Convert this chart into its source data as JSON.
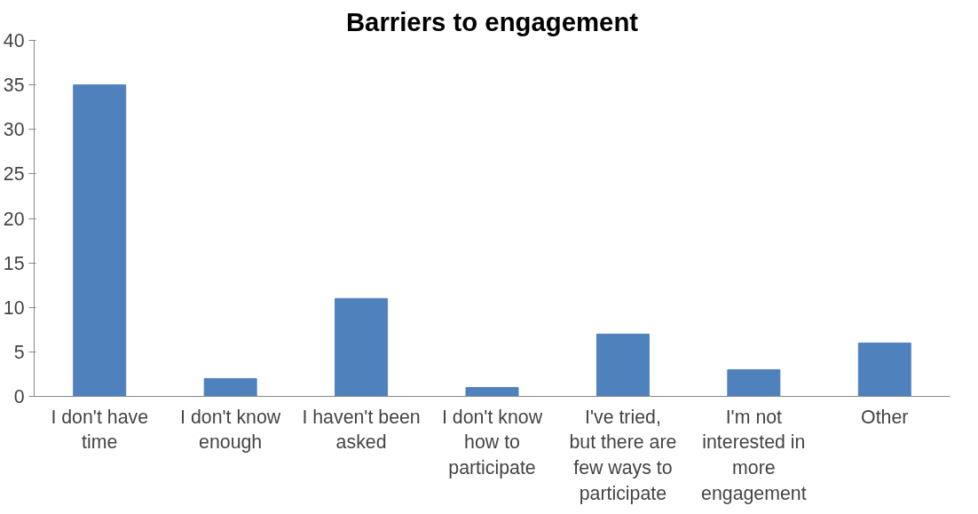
{
  "chart_data": {
    "type": "bar",
    "title": "Barriers to engagement",
    "categories": [
      "I don't have time",
      "I don't know enough",
      "I haven't been asked",
      "I don't know how to participate",
      "I've tried, but there are few ways to participate",
      "I'm not interested in more engagement",
      "Other"
    ],
    "values": [
      35,
      2,
      11,
      1,
      7,
      3,
      6
    ],
    "color": "#4f81bd",
    "ylim": [
      0,
      40
    ],
    "yticks": [
      0,
      5,
      10,
      15,
      20,
      25,
      30,
      35,
      40
    ],
    "grid": false
  }
}
